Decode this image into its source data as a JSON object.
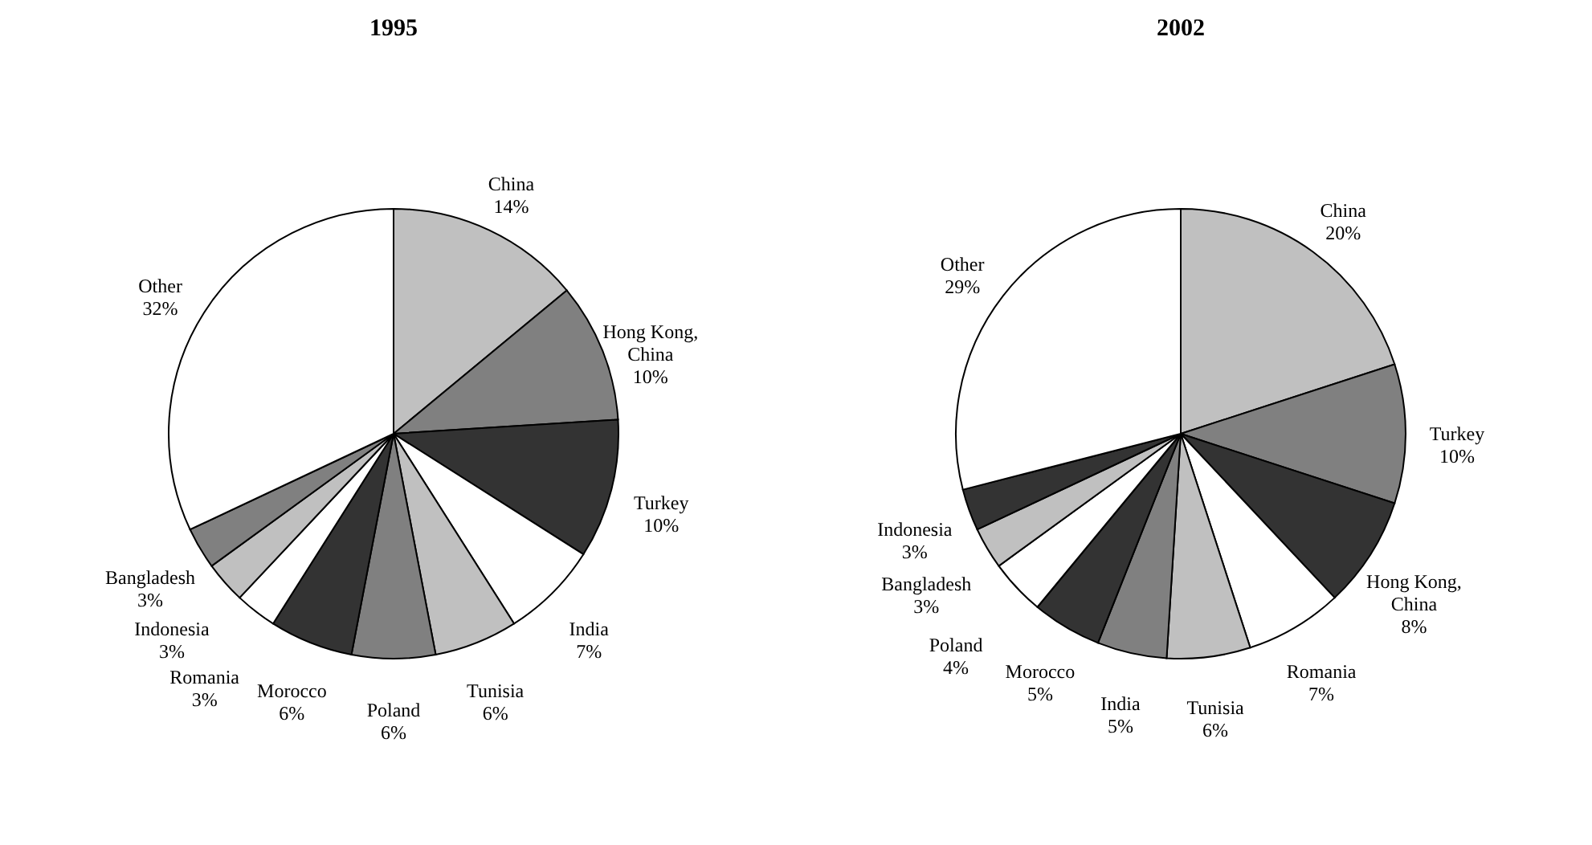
{
  "chart_data": [
    {
      "type": "pie",
      "title": "1995",
      "categories": [
        "China",
        "Hong Kong, China",
        "Turkey",
        "India",
        "Tunisia",
        "Poland",
        "Morocco",
        "Romania",
        "Indonesia",
        "Bangladesh",
        "Other"
      ],
      "values": [
        14,
        10,
        10,
        7,
        6,
        6,
        6,
        3,
        3,
        3,
        32
      ],
      "value_labels": [
        "14%",
        "10%",
        "10%",
        "7%",
        "6%",
        "6%",
        "6%",
        "3%",
        "3%",
        "3%",
        "32%"
      ],
      "colors": [
        "#c0c0c0",
        "#808080",
        "#333333",
        "#ffffff",
        "#c0c0c0",
        "#808080",
        "#333333",
        "#ffffff",
        "#c0c0c0",
        "#808080",
        "#ffffff"
      ]
    },
    {
      "type": "pie",
      "title": "2002",
      "categories": [
        "China",
        "Turkey",
        "Hong Kong, China",
        "Romania",
        "Tunisia",
        "India",
        "Morocco",
        "Poland",
        "Bangladesh",
        "Indonesia",
        "Other"
      ],
      "values": [
        20,
        10,
        8,
        7,
        6,
        5,
        5,
        4,
        3,
        3,
        29
      ],
      "value_labels": [
        "20%",
        "10%",
        "8%",
        "7%",
        "6%",
        "5%",
        "5%",
        "4%",
        "3%",
        "3%",
        "29%"
      ],
      "colors": [
        "#c0c0c0",
        "#808080",
        "#333333",
        "#ffffff",
        "#c0c0c0",
        "#808080",
        "#333333",
        "#ffffff",
        "#c0c0c0",
        "#333333",
        "#ffffff"
      ]
    }
  ]
}
